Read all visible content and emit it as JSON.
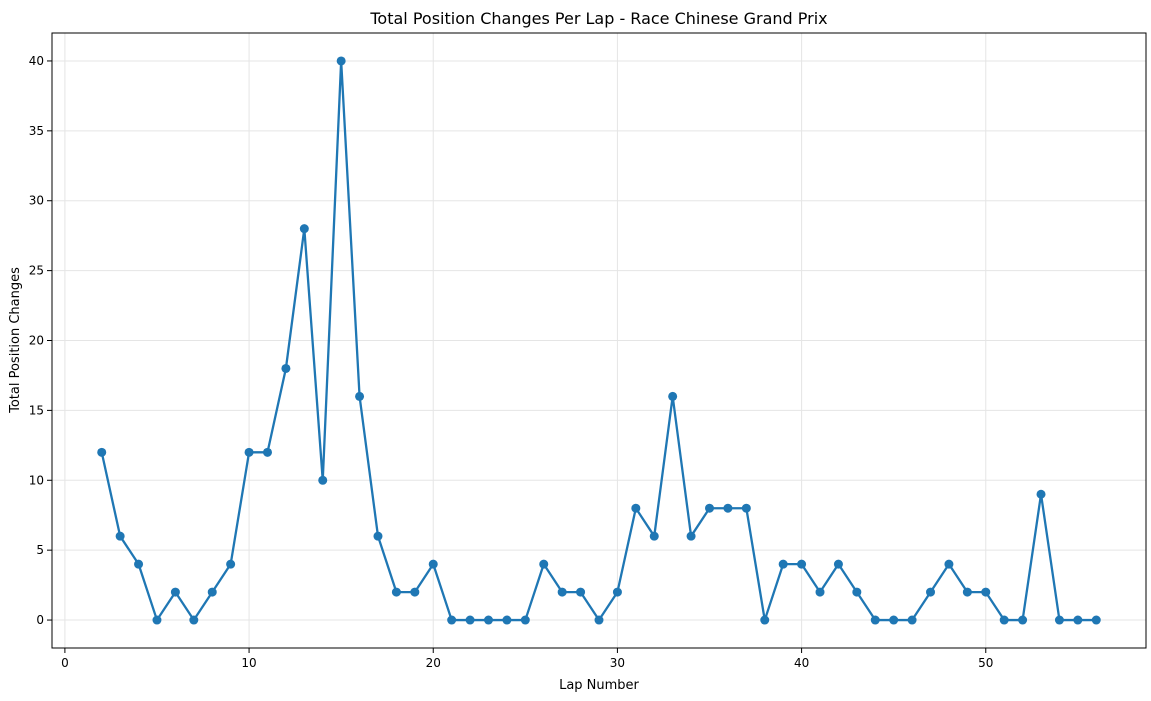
{
  "chart_data": {
    "type": "line",
    "title": "Total Position Changes Per Lap - Race Chinese Grand Prix",
    "xlabel": "Lap Number",
    "ylabel": "Total Position Changes",
    "xlim": [
      -0.7,
      58.7
    ],
    "ylim": [
      -2,
      42
    ],
    "xticks": [
      0,
      10,
      20,
      30,
      40,
      50
    ],
    "yticks": [
      0,
      5,
      10,
      15,
      20,
      25,
      30,
      35,
      40
    ],
    "grid": true,
    "series": [
      {
        "color": "#1f77b4",
        "x": [
          2,
          3,
          4,
          5,
          6,
          7,
          8,
          9,
          10,
          11,
          12,
          13,
          14,
          15,
          16,
          17,
          18,
          19,
          20,
          21,
          22,
          23,
          24,
          25,
          26,
          27,
          28,
          29,
          30,
          31,
          32,
          33,
          34,
          35,
          36,
          37,
          38,
          39,
          40,
          41,
          42,
          43,
          44,
          45,
          46,
          47,
          48,
          49,
          50,
          51,
          52,
          53,
          54,
          55,
          56
        ],
        "y": [
          12,
          6,
          4,
          0,
          2,
          0,
          2,
          4,
          12,
          12,
          18,
          28,
          10,
          40,
          16,
          6,
          2,
          2,
          4,
          0,
          0,
          0,
          0,
          0,
          4,
          2,
          2,
          0,
          2,
          8,
          6,
          16,
          6,
          8,
          8,
          8,
          0,
          4,
          4,
          2,
          4,
          2,
          0,
          0,
          0,
          2,
          4,
          2,
          2,
          0,
          0,
          9,
          0,
          0,
          0
        ]
      }
    ]
  }
}
